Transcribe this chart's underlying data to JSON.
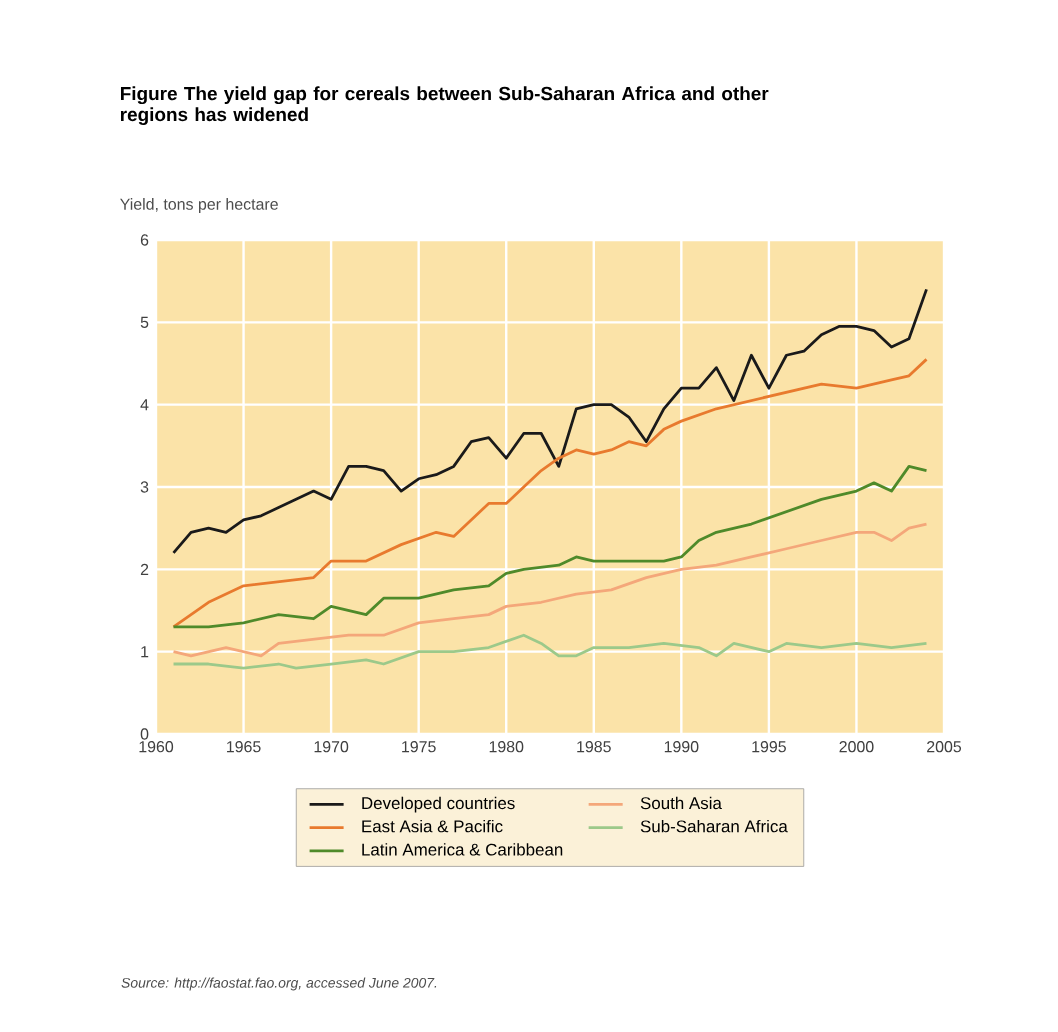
{
  "chart_data": {
    "type": "line",
    "title": "Figure The yield gap for cereals between Sub-Saharan Africa and other regions has widened",
    "ylabel": "Yield, tons per hectare",
    "annotations": [
      "Source: http://faostat.fao.org, accessed June 2007."
    ],
    "xlim": [
      1960,
      2005
    ],
    "xticks": [
      1960,
      1965,
      1970,
      1975,
      1980,
      1985,
      1990,
      1995,
      2000,
      2005
    ],
    "ylim": [
      0,
      6
    ],
    "yticks": [
      0,
      1,
      2,
      3,
      4,
      5,
      6
    ],
    "grid": true,
    "legend": "bottom",
    "marker": "none",
    "line_style": "solid",
    "series": [
      {
        "name": "Developed countries",
        "color": "#1a1a1a",
        "x": [
          1961,
          1962,
          1963,
          1964,
          1965,
          1966,
          1967,
          1968,
          1969,
          1970,
          1971,
          1972,
          1973,
          1974,
          1975,
          1976,
          1977,
          1978,
          1979,
          1980,
          1981,
          1982,
          1983,
          1984,
          1985,
          1986,
          1987,
          1988,
          1989,
          1990,
          1991,
          1992,
          1993,
          1994,
          1995,
          1996,
          1997,
          1998,
          1999,
          2000,
          2001,
          2002,
          2003,
          2004
        ],
        "values": [
          2.2,
          2.45,
          2.5,
          2.45,
          2.6,
          2.65,
          2.75,
          2.85,
          2.95,
          2.85,
          3.25,
          3.25,
          3.2,
          2.95,
          3.1,
          3.15,
          3.25,
          3.55,
          3.6,
          3.35,
          3.65,
          3.65,
          3.25,
          3.95,
          4.0,
          4.0,
          3.85,
          3.55,
          3.95,
          4.2,
          4.2,
          4.45,
          4.05,
          4.6,
          4.2,
          4.6,
          4.65,
          4.85,
          4.95,
          4.95,
          4.9,
          4.7,
          4.8,
          5.4
        ]
      },
      {
        "name": "South Asia",
        "color": "#f4a77a",
        "x": [
          1961,
          1962,
          1964,
          1966,
          1967,
          1969,
          1971,
          1973,
          1975,
          1977,
          1979,
          1980,
          1982,
          1984,
          1986,
          1988,
          1990,
          1992,
          1994,
          1996,
          1998,
          2000,
          2001,
          2002,
          2003,
          2004
        ],
        "values": [
          1.0,
          0.95,
          1.05,
          0.95,
          1.1,
          1.15,
          1.2,
          1.2,
          1.35,
          1.4,
          1.45,
          1.55,
          1.6,
          1.7,
          1.75,
          1.9,
          2.0,
          2.05,
          2.15,
          2.25,
          2.35,
          2.45,
          2.45,
          2.35,
          2.5,
          2.55
        ]
      },
      {
        "name": "East Asia & Pacific",
        "color": "#e87a2e",
        "x": [
          1961,
          1963,
          1965,
          1967,
          1969,
          1970,
          1972,
          1974,
          1976,
          1977,
          1978,
          1979,
          1980,
          1981,
          1982,
          1983,
          1984,
          1985,
          1986,
          1987,
          1988,
          1989,
          1990,
          1992,
          1994,
          1996,
          1998,
          2000,
          2002,
          2003,
          2004
        ],
        "values": [
          1.3,
          1.6,
          1.8,
          1.85,
          1.9,
          2.1,
          2.1,
          2.3,
          2.45,
          2.4,
          2.6,
          2.8,
          2.8,
          3.0,
          3.2,
          3.35,
          3.45,
          3.4,
          3.45,
          3.55,
          3.5,
          3.7,
          3.8,
          3.95,
          4.05,
          4.15,
          4.25,
          4.2,
          4.3,
          4.35,
          4.55
        ]
      },
      {
        "name": "Sub-Saharan Africa",
        "color": "#9cc98a",
        "x": [
          1961,
          1963,
          1965,
          1967,
          1968,
          1970,
          1972,
          1973,
          1975,
          1977,
          1979,
          1981,
          1982,
          1983,
          1984,
          1985,
          1987,
          1989,
          1991,
          1992,
          1993,
          1995,
          1996,
          1998,
          2000,
          2002,
          2004
        ],
        "values": [
          0.85,
          0.85,
          0.8,
          0.85,
          0.8,
          0.85,
          0.9,
          0.85,
          1.0,
          1.0,
          1.05,
          1.2,
          1.1,
          0.95,
          0.95,
          1.05,
          1.05,
          1.1,
          1.05,
          0.95,
          1.1,
          1.0,
          1.1,
          1.05,
          1.1,
          1.05,
          1.1
        ]
      },
      {
        "name": "Latin America & Caribbean",
        "color": "#4f8a2a",
        "x": [
          1961,
          1963,
          1965,
          1967,
          1969,
          1970,
          1972,
          1973,
          1975,
          1977,
          1979,
          1980,
          1981,
          1983,
          1984,
          1985,
          1987,
          1989,
          1990,
          1991,
          1992,
          1994,
          1996,
          1998,
          2000,
          2001,
          2002,
          2003,
          2004
        ],
        "values": [
          1.3,
          1.3,
          1.35,
          1.45,
          1.4,
          1.55,
          1.45,
          1.65,
          1.65,
          1.75,
          1.8,
          1.95,
          2.0,
          2.05,
          2.15,
          2.1,
          2.1,
          2.1,
          2.15,
          2.35,
          2.45,
          2.55,
          2.7,
          2.85,
          2.95,
          3.05,
          2.95,
          3.25,
          3.2
        ]
      }
    ]
  }
}
